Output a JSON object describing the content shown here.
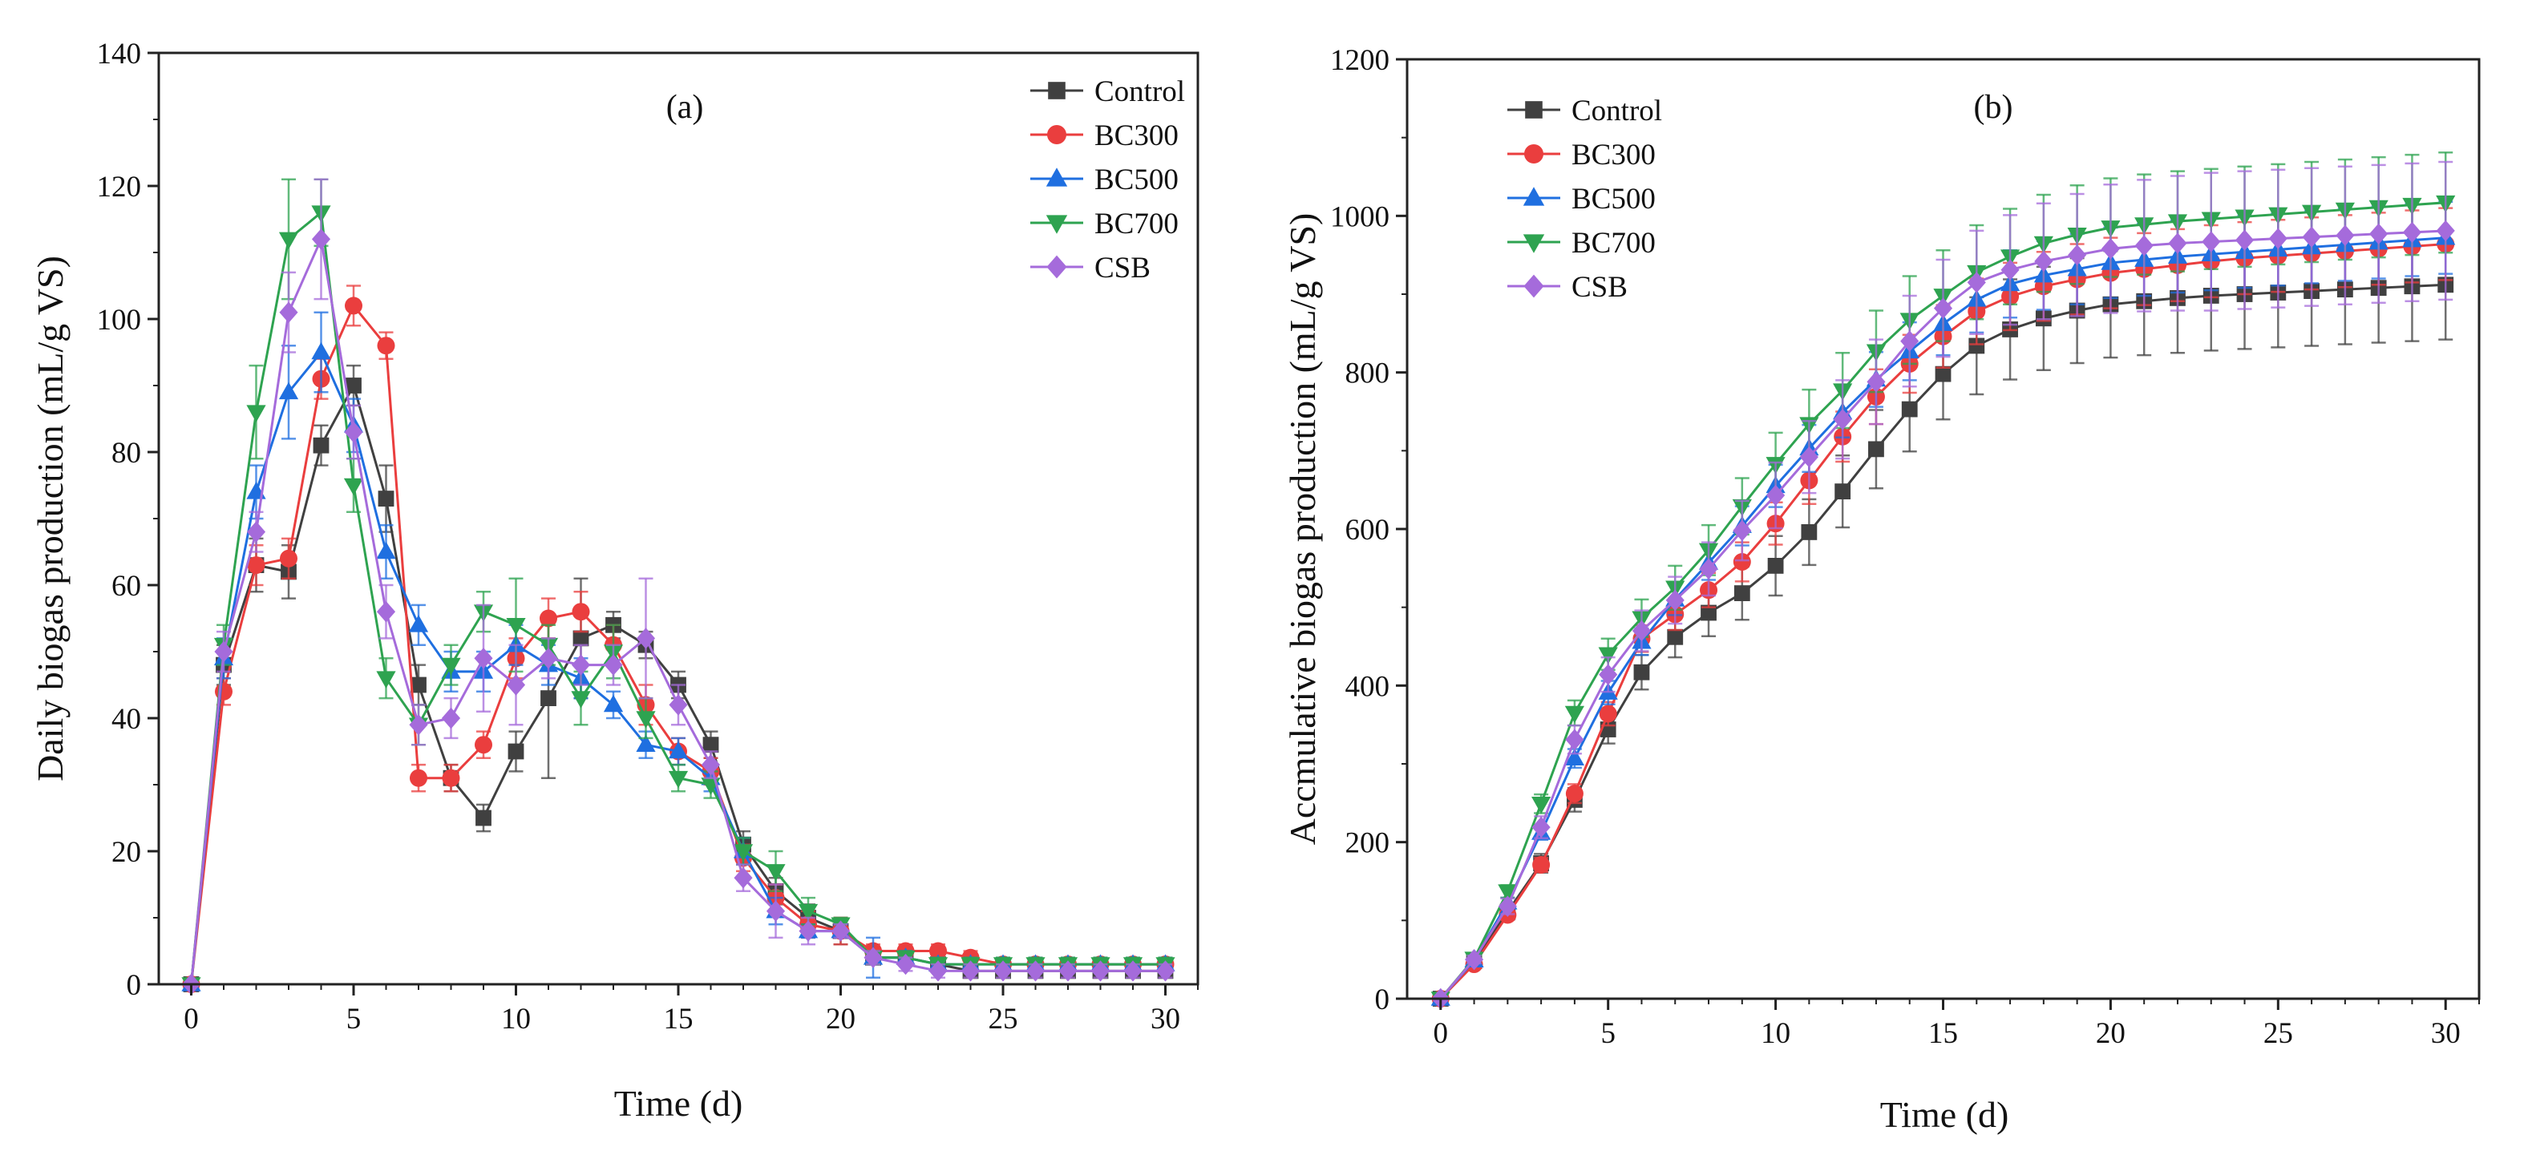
{
  "chart_data": [
    {
      "type": "line",
      "panel_label": "(a)",
      "xlabel": "Time (d)",
      "ylabel": "Daily biogas production (mL/g VS)",
      "xlim": [
        -1,
        31
      ],
      "ylim": [
        0,
        140
      ],
      "xticks": [
        0,
        5,
        10,
        15,
        20,
        25,
        30
      ],
      "yticks": [
        0,
        20,
        40,
        60,
        80,
        100,
        120,
        140
      ],
      "xtick_labels": [
        "0",
        "5",
        "10",
        "15",
        "20",
        "25",
        "30"
      ],
      "ytick_labels": [
        "0",
        "20",
        "40",
        "60",
        "80",
        "100",
        "120",
        "140"
      ],
      "legend_position": "top-right",
      "grid": false,
      "x": [
        0,
        1,
        2,
        3,
        4,
        5,
        6,
        7,
        8,
        9,
        10,
        11,
        12,
        13,
        14,
        15,
        16,
        17,
        18,
        19,
        20,
        21,
        22,
        23,
        24,
        25,
        26,
        27,
        28,
        29,
        30
      ],
      "series": [
        {
          "name": "Control",
          "color": "#404040",
          "marker": "square",
          "values": [
            0,
            48,
            63,
            62,
            81,
            90,
            73,
            45,
            31,
            25,
            35,
            43,
            52,
            54,
            51,
            45,
            36,
            21,
            14,
            10,
            8,
            4,
            4,
            3,
            2,
            2,
            2,
            2,
            2,
            2,
            2
          ],
          "errors": [
            0,
            3,
            4,
            4,
            3,
            3,
            5,
            3,
            2,
            2,
            3,
            12,
            9,
            2,
            2,
            2,
            2,
            2,
            2,
            2,
            2,
            1,
            1,
            1,
            1,
            1,
            1,
            1,
            1,
            1,
            1
          ]
        },
        {
          "name": "BC300",
          "color": "#ea3e3e",
          "marker": "circle",
          "values": [
            0,
            44,
            63,
            64,
            91,
            102,
            96,
            31,
            31,
            36,
            49,
            55,
            56,
            51,
            42,
            35,
            32,
            19,
            13,
            9,
            8,
            5,
            5,
            5,
            4,
            3,
            3,
            3,
            3,
            3,
            3
          ],
          "errors": [
            0,
            2,
            3,
            3,
            3,
            3,
            2,
            2,
            2,
            2,
            3,
            3,
            3,
            3,
            3,
            2,
            2,
            2,
            2,
            2,
            2,
            1,
            1,
            1,
            1,
            1,
            1,
            1,
            1,
            1,
            1
          ]
        },
        {
          "name": "BC500",
          "color": "#1f6fe0",
          "marker": "triangle-up",
          "values": [
            0,
            49,
            74,
            89,
            95,
            84,
            65,
            54,
            47,
            47,
            51,
            48,
            46,
            42,
            36,
            35,
            31,
            20,
            11,
            8,
            8,
            4,
            4,
            3,
            3,
            3,
            3,
            3,
            3,
            3,
            3
          ],
          "errors": [
            0,
            3,
            4,
            7,
            6,
            4,
            4,
            3,
            3,
            3,
            3,
            3,
            3,
            2,
            2,
            2,
            2,
            2,
            2,
            1,
            1,
            3,
            1,
            1,
            1,
            1,
            1,
            1,
            1,
            1,
            1
          ]
        },
        {
          "name": "BC700",
          "color": "#2ea350",
          "marker": "triangle-down",
          "values": [
            0,
            51,
            86,
            112,
            116,
            75,
            46,
            39,
            48,
            56,
            54,
            51,
            43,
            50,
            40,
            31,
            30,
            20,
            17,
            11,
            9,
            4,
            4,
            3,
            3,
            3,
            3,
            3,
            3,
            3,
            3
          ],
          "errors": [
            0,
            3,
            7,
            9,
            5,
            4,
            3,
            3,
            3,
            3,
            7,
            3,
            4,
            4,
            3,
            2,
            2,
            2,
            3,
            2,
            1,
            1,
            1,
            1,
            1,
            1,
            1,
            1,
            1,
            1,
            1
          ]
        },
        {
          "name": "CSB",
          "color": "#a56bdb",
          "marker": "diamond",
          "values": [
            0,
            50,
            68,
            101,
            112,
            83,
            56,
            39,
            40,
            49,
            45,
            49,
            48,
            48,
            52,
            42,
            33,
            16,
            11,
            8,
            8,
            4,
            3,
            2,
            2,
            2,
            2,
            2,
            2,
            2,
            2
          ],
          "errors": [
            0,
            3,
            3,
            6,
            9,
            4,
            4,
            3,
            3,
            8,
            6,
            3,
            3,
            3,
            9,
            3,
            2,
            2,
            4,
            2,
            1,
            1,
            1,
            1,
            1,
            1,
            1,
            1,
            1,
            1,
            1
          ]
        }
      ]
    },
    {
      "type": "line",
      "panel_label": "(b)",
      "xlabel": "Time (d)",
      "ylabel": "Accmulative biogas production (mL/g VS)",
      "xlim": [
        -1,
        31
      ],
      "ylim": [
        0,
        1200
      ],
      "xticks": [
        0,
        5,
        10,
        15,
        20,
        25,
        30
      ],
      "yticks": [
        0,
        200,
        400,
        600,
        800,
        1000,
        1200
      ],
      "xtick_labels": [
        "0",
        "5",
        "10",
        "15",
        "20",
        "25",
        "30"
      ],
      "ytick_labels": [
        "0",
        "200",
        "400",
        "600",
        "800",
        "1000",
        "1200"
      ],
      "legend_position": "top-left",
      "grid": false,
      "x": [
        0,
        1,
        2,
        3,
        4,
        5,
        6,
        7,
        8,
        9,
        10,
        11,
        12,
        13,
        14,
        15,
        16,
        17,
        18,
        19,
        20,
        21,
        22,
        23,
        24,
        25,
        26,
        27,
        28,
        29,
        30
      ],
      "series": [
        {
          "name": "Control",
          "color": "#404040",
          "marker": "square",
          "values": [
            0,
            48,
            111,
            173,
            254,
            344,
            417,
            462,
            493,
            518,
            553,
            596,
            648,
            702,
            753,
            798,
            834,
            855,
            869,
            879,
            887,
            891,
            895,
            898,
            900,
            902,
            904,
            906,
            908,
            910,
            912
          ],
          "errors": [
            0,
            5,
            10,
            12,
            15,
            18,
            22,
            26,
            30,
            34,
            38,
            42,
            46,
            50,
            54,
            58,
            62,
            64,
            66,
            67,
            68,
            69,
            70,
            70,
            70,
            70,
            70,
            70,
            70,
            70,
            70
          ]
        },
        {
          "name": "BC300",
          "color": "#ea3e3e",
          "marker": "circle",
          "values": [
            0,
            44,
            107,
            171,
            262,
            364,
            460,
            491,
            522,
            558,
            607,
            662,
            718,
            769,
            811,
            846,
            878,
            897,
            910,
            919,
            927,
            932,
            937,
            942,
            946,
            949,
            952,
            955,
            958,
            961,
            964
          ],
          "errors": [
            0,
            3,
            6,
            9,
            12,
            15,
            17,
            20,
            22,
            25,
            27,
            30,
            32,
            35,
            37,
            40,
            42,
            43,
            44,
            45,
            45,
            46,
            46,
            46,
            46,
            46,
            46,
            46,
            46,
            46,
            46
          ]
        },
        {
          "name": "BC500",
          "color": "#1f6fe0",
          "marker": "triangle-up",
          "values": [
            0,
            49,
            123,
            212,
            307,
            391,
            456,
            510,
            557,
            604,
            655,
            703,
            749,
            791,
            827,
            862,
            893,
            913,
            924,
            932,
            940,
            944,
            948,
            951,
            954,
            957,
            960,
            963,
            966,
            969,
            972
          ],
          "errors": [
            0,
            3,
            6,
            9,
            12,
            15,
            17,
            20,
            22,
            25,
            27,
            30,
            32,
            35,
            37,
            40,
            42,
            43,
            44,
            45,
            45,
            46,
            46,
            46,
            46,
            46,
            46,
            46,
            46,
            46,
            46
          ]
        },
        {
          "name": "BC700",
          "color": "#2ea350",
          "marker": "triangle-down",
          "values": [
            0,
            51,
            137,
            249,
            365,
            440,
            486,
            525,
            573,
            629,
            683,
            734,
            777,
            827,
            867,
            898,
            928,
            948,
            965,
            976,
            985,
            989,
            993,
            996,
            999,
            1002,
            1005,
            1008,
            1011,
            1014,
            1017
          ],
          "errors": [
            0,
            4,
            8,
            12,
            16,
            20,
            24,
            28,
            32,
            36,
            40,
            44,
            48,
            52,
            56,
            58,
            60,
            61,
            62,
            63,
            63,
            64,
            64,
            64,
            64,
            64,
            64,
            64,
            64,
            64,
            64
          ]
        },
        {
          "name": "CSB",
          "color": "#a56bdb",
          "marker": "diamond",
          "values": [
            0,
            50,
            118,
            219,
            331,
            414,
            470,
            509,
            549,
            598,
            643,
            692,
            740,
            788,
            840,
            882,
            915,
            931,
            942,
            950,
            958,
            962,
            965,
            967,
            969,
            971,
            973,
            975,
            977,
            979,
            981
          ],
          "errors": [
            0,
            5,
            10,
            14,
            18,
            22,
            26,
            30,
            34,
            38,
            42,
            46,
            50,
            54,
            58,
            62,
            66,
            70,
            74,
            78,
            82,
            84,
            86,
            88,
            88,
            88,
            88,
            88,
            88,
            88,
            88
          ]
        }
      ]
    }
  ]
}
